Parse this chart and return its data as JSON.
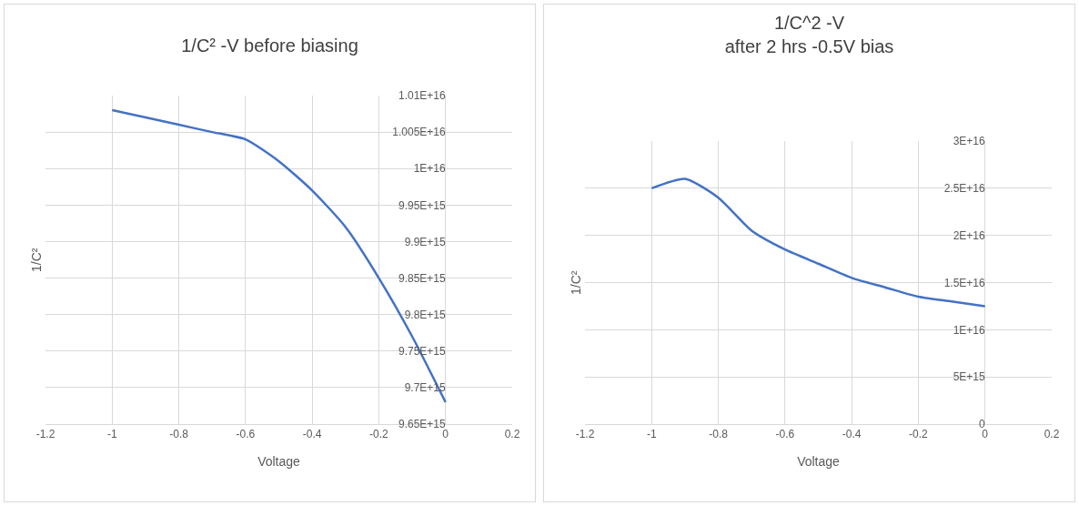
{
  "chart_data": [
    {
      "type": "line",
      "title": "1/C² -V before biasing",
      "xlabel": "Voltage",
      "ylabel": "1/C²",
      "x": [
        -1,
        -0.9,
        -0.8,
        -0.7,
        -0.6,
        -0.5,
        -0.4,
        -0.3,
        -0.2,
        -0.1,
        0
      ],
      "series": [
        {
          "color": "#4472c4",
          "values": [
            1.008e+16,
            1.007e+16,
            1.006e+16,
            1.005e+16,
            1.004e+16,
            1.001e+16,
            9970000000000000.0,
            9920000000000000.0,
            9850000000000000.0,
            9770000000000000.0,
            9680000000000000.0
          ]
        }
      ],
      "xlim": [
        -1.2,
        0.2
      ],
      "xticks": [
        -1.2,
        -1,
        -0.8,
        -0.6,
        -0.4,
        -0.2,
        0,
        0.2
      ],
      "ylim": [
        9650000000000000.0,
        1.01e+16
      ],
      "yticks": [
        {
          "value": 9650000000000000.0,
          "label": "9.65E+15"
        },
        {
          "value": 9700000000000000.0,
          "label": "9.7E+15"
        },
        {
          "value": 9750000000000000.0,
          "label": "9.75E+15"
        },
        {
          "value": 9800000000000000.0,
          "label": "9.8E+15"
        },
        {
          "value": 9850000000000000.0,
          "label": "9.85E+15"
        },
        {
          "value": 9900000000000000.0,
          "label": "9.9E+15"
        },
        {
          "value": 9950000000000000.0,
          "label": "9.95E+15"
        },
        {
          "value": 1e+16,
          "label": "1E+16"
        },
        {
          "value": 1.005e+16,
          "label": "1.005E+16"
        },
        {
          "value": 1.01e+16,
          "label": "1.01E+16"
        }
      ],
      "grid": true,
      "marker": "none",
      "line_style": "solid"
    },
    {
      "type": "line",
      "title": "1/C^2 -V\nafter 2 hrs -0.5V bias",
      "xlabel": "Voltage",
      "ylabel": "1/C²",
      "x": [
        -1,
        -0.9,
        -0.8,
        -0.7,
        -0.6,
        -0.5,
        -0.4,
        -0.3,
        -0.2,
        -0.1,
        0
      ],
      "series": [
        {
          "color": "#4472c4",
          "values": [
            2.5e+16,
            2.6e+16,
            2.4e+16,
            2.05e+16,
            1.85e+16,
            1.7e+16,
            1.55e+16,
            1.45e+16,
            1.35e+16,
            1.3e+16,
            1.25e+16
          ]
        }
      ],
      "xlim": [
        -1.2,
        0.2
      ],
      "xticks": [
        -1.2,
        -1,
        -0.8,
        -0.6,
        -0.4,
        -0.2,
        0,
        0.2
      ],
      "ylim": [
        0,
        3e+16
      ],
      "yticks": [
        0,
        {
          "value": 5000000000000000.0,
          "label": "5E+15"
        },
        {
          "value": 1e+16,
          "label": "1E+16"
        },
        {
          "value": 1.5e+16,
          "label": "1.5E+16"
        },
        {
          "value": 2e+16,
          "label": "2E+16"
        },
        {
          "value": 2.5e+16,
          "label": "2.5E+16"
        },
        {
          "value": 3e+16,
          "label": "3E+16"
        }
      ],
      "grid": true,
      "marker": "none",
      "line_style": "solid"
    }
  ]
}
